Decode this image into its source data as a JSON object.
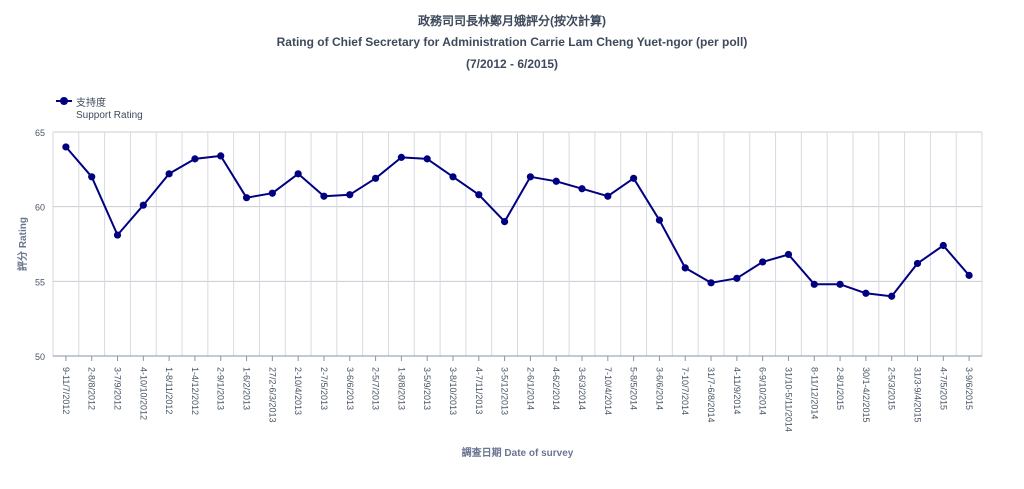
{
  "chart_data": {
    "type": "line",
    "title": "政務司司長林鄭月娥評分(按次計算)",
    "subtitle": "Rating of Chief Secretary for Administration Carrie Lam Cheng Yuet-ngor (per poll)",
    "subtitle2": "(7/2012 - 6/2015)",
    "xlabel": "調查日期 Date of survey",
    "ylabel": "評分 Rating",
    "ylim": [
      50,
      65
    ],
    "yticks": [
      50,
      55,
      60,
      65
    ],
    "grid": true,
    "legend_position": "top-left",
    "line_color": "#000080",
    "categories": [
      "9-11/7/2012",
      "2-8/8/2012",
      "3-7/9/2012",
      "4-10/10/2012",
      "1-8/11/2012",
      "1-4/12/2012",
      "2-9/1/2013",
      "1-6/2/2013",
      "27/2-6/3/2013",
      "2-10/4/2013",
      "2-7/5/2013",
      "3-6/6/2013",
      "2-5/7/2013",
      "1-8/8/2013",
      "3-5/9/2013",
      "3-8/10/2013",
      "4-7/11/2013",
      "3-5/12/2013",
      "2-6/1/2014",
      "4-6/2/2014",
      "3-6/3/2014",
      "7-10/4/2014",
      "5-8/5/2014",
      "3-6/6/2014",
      "7-10/7/2014",
      "31/7-6/8/2014",
      "4-11/9/2014",
      "6-9/10/2014",
      "31/10-5/11/2014",
      "8-11/12/2014",
      "2-8/1/2015",
      "30/1-4/2/2015",
      "2-5/3/2015",
      "31/3-9/4/2015",
      "4-7/5/2015",
      "3-9/6/2015"
    ],
    "series": [
      {
        "name": "支持度",
        "name_en": "Support Rating",
        "values": [
          64.0,
          62.0,
          58.1,
          60.1,
          62.2,
          63.2,
          63.4,
          60.6,
          60.9,
          62.2,
          60.7,
          60.8,
          61.9,
          63.3,
          63.2,
          62.0,
          60.8,
          59.0,
          62.0,
          61.7,
          61.2,
          60.7,
          61.9,
          59.1,
          55.9,
          54.9,
          55.2,
          56.3,
          56.8,
          54.8,
          54.8,
          54.2,
          54.0,
          56.2,
          57.4,
          55.4
        ]
      }
    ]
  }
}
